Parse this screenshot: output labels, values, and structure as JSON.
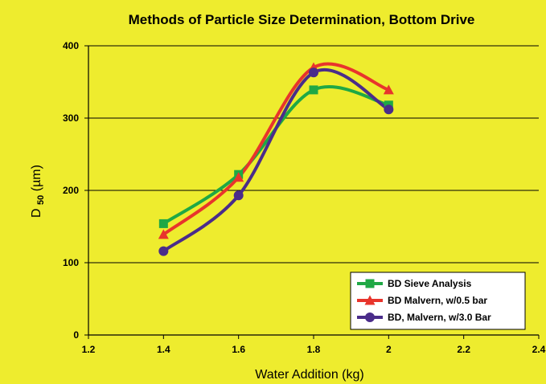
{
  "chart_data": {
    "type": "line",
    "title": "Methods of Particle Size Determination, Bottom Drive",
    "xlabel": "Water Addition (kg)",
    "ylabel_main": "D",
    "ylabel_sub": "50",
    "ylabel_unit": " (µm)",
    "xlim": [
      1.2,
      2.4
    ],
    "ylim": [
      0,
      400
    ],
    "x_ticks": [
      1.2,
      1.4,
      1.6,
      1.8,
      2.0,
      2.2,
      2.4
    ],
    "x_tick_labels": [
      "1.2",
      "1.4",
      "1.6",
      "1.8",
      "2",
      "2.2",
      "2.4"
    ],
    "y_ticks": [
      0,
      100,
      200,
      300,
      400
    ],
    "y_tick_labels": [
      "0",
      "100",
      "200",
      "300",
      "400"
    ],
    "grid": "horizontal",
    "legend_position": "bottom-right",
    "series": [
      {
        "name": "BD Sieve Analysis",
        "color": "#1FA845",
        "marker": "square",
        "x": [
          1.4,
          1.6,
          1.8,
          2.0
        ],
        "y": [
          154,
          222,
          339,
          318
        ]
      },
      {
        "name": "BD Malvern, w/0.5 bar",
        "color": "#E8342C",
        "marker": "triangle",
        "x": [
          1.4,
          1.6,
          1.8,
          2.0
        ],
        "y": [
          139,
          218,
          370,
          339
        ]
      },
      {
        "name": "BD, Malvern, w/3.0 Bar",
        "color": "#4A2C8A",
        "marker": "circle",
        "x": [
          1.4,
          1.6,
          1.8,
          2.0
        ],
        "y": [
          116,
          193,
          363,
          312
        ]
      }
    ]
  }
}
